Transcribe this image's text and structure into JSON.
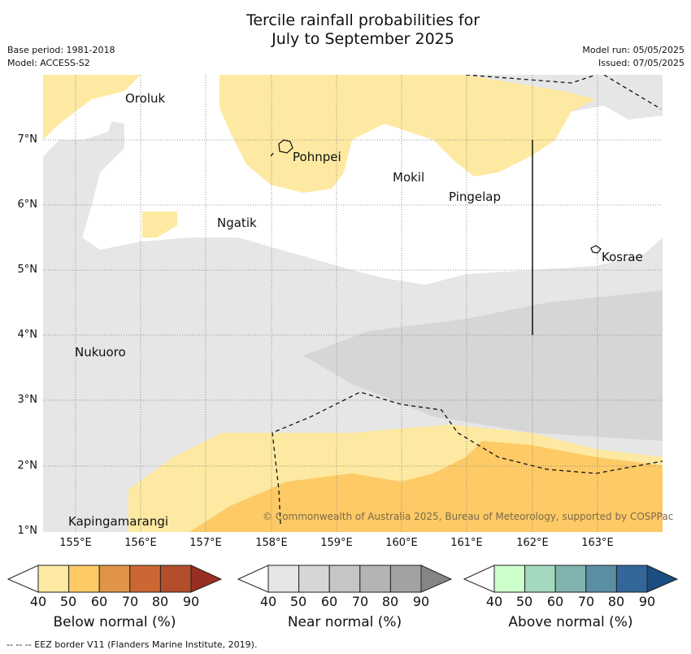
{
  "title_line1": "Tercile rainfall probabilities for",
  "title_line2": "July to September 2025",
  "meta": {
    "base_period": "Base period: 1981-2018",
    "model": "Model: ACCESS-S2",
    "model_run": "Model run: 05/05/2025",
    "issued": "Issued: 07/05/2025"
  },
  "lat_labels": [
    "7°N",
    "6°N",
    "5°N",
    "4°N",
    "3°N",
    "2°N",
    "1°N"
  ],
  "lon_labels": [
    "155°E",
    "156°E",
    "157°E",
    "158°E",
    "159°E",
    "160°E",
    "161°E",
    "162°E",
    "163°E"
  ],
  "places": {
    "oroluk": "Oroluk",
    "pohnpei": "Pohnpei",
    "mokil": "Mokil",
    "pingelap": "Pingelap",
    "ngatik": "Ngatik",
    "kosrae": "Kosrae",
    "nukuoro": "Nukuoro",
    "kapingamarangi": "Kapingamarangi"
  },
  "copyright": "© Commonwealth of Australia 2025, Bureau of Meteorology, supported by COSPPac",
  "colorbars": [
    {
      "title": "Below normal (%)",
      "ticks": [
        "40",
        "50",
        "60",
        "70",
        "80",
        "90"
      ],
      "colors": [
        "#ffffff",
        "#fde9a1",
        "#fdca66",
        "#e0944a",
        "#cc6633",
        "#b34d2b",
        "#992e22"
      ]
    },
    {
      "title": "Near normal (%)",
      "ticks": [
        "40",
        "50",
        "60",
        "70",
        "80",
        "90"
      ],
      "colors": [
        "#ffffff",
        "#e6e6e6",
        "#d6d6d6",
        "#c6c6c6",
        "#b4b4b4",
        "#a2a2a2",
        "#858585"
      ]
    },
    {
      "title": "Above normal (%)",
      "ticks": [
        "40",
        "50",
        "60",
        "70",
        "80",
        "90"
      ],
      "colors": [
        "#ffffff",
        "#ccffcc",
        "#a3d9bf",
        "#80b3ad",
        "#5a8fa3",
        "#336699",
        "#1a4d80"
      ]
    }
  ],
  "footer": "--  --  -- EEZ border V11 (Flanders Marine Institute, 2019)."
}
